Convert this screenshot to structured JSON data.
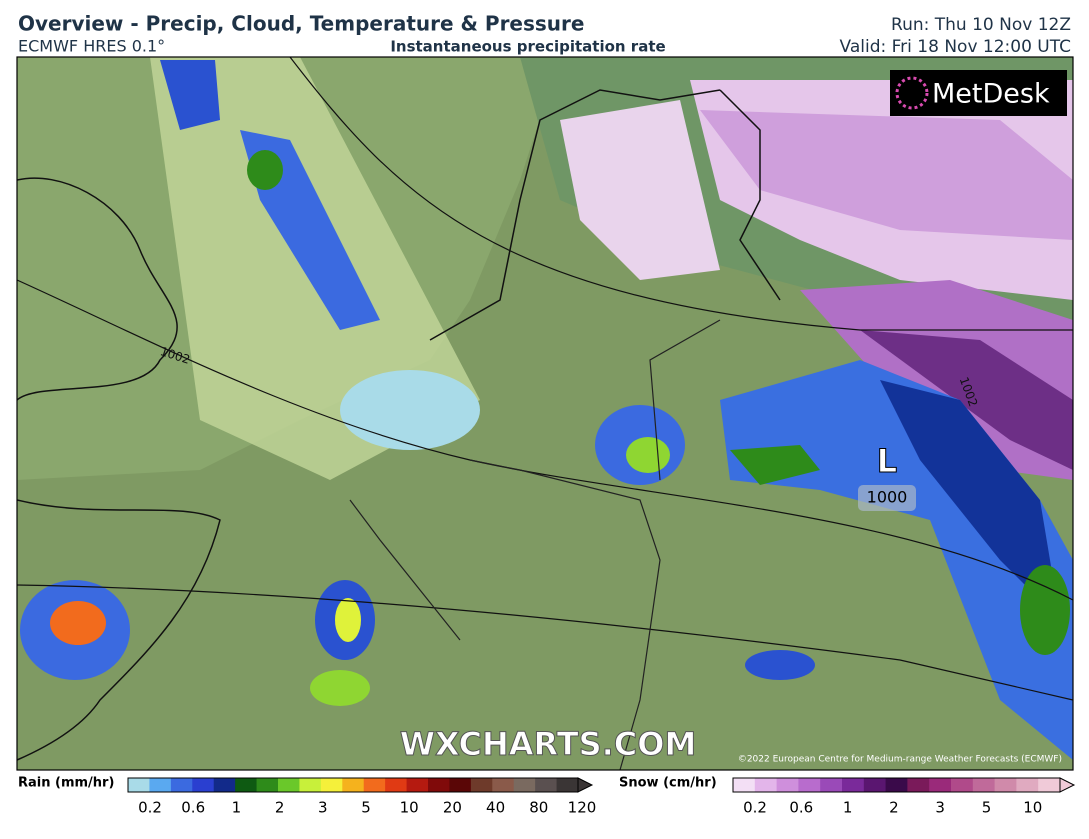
{
  "header": {
    "title": "Overview - Precip, Cloud, Temperature & Pressure",
    "model": "ECMWF HRES 0.1°",
    "field": "Instantaneous precipitation rate",
    "run": "Run: Thu 10 Nov 12Z",
    "valid": "Valid: Fri 18 Nov 12:00 UTC"
  },
  "map": {
    "logo": "MetDesk",
    "isobar_labels": [
      "1002",
      "1002"
    ],
    "low_symbol": "L",
    "low_pressure": "1000",
    "watermark": "WXCHARTS.COM",
    "copyright": "©2022 European Centre for Medium-range Weather Forecasts (ECMWF)"
  },
  "legend": {
    "rain_label": "Rain (mm/hr)",
    "rain_ticks": [
      "0.2",
      "0.6",
      "1",
      "2",
      "3",
      "5",
      "10",
      "20",
      "40",
      "80",
      "120"
    ],
    "snow_label": "Snow (cm/hr)",
    "snow_ticks": [
      "0.2",
      "0.6",
      "1",
      "2",
      "3",
      "5",
      "10"
    ]
  }
}
